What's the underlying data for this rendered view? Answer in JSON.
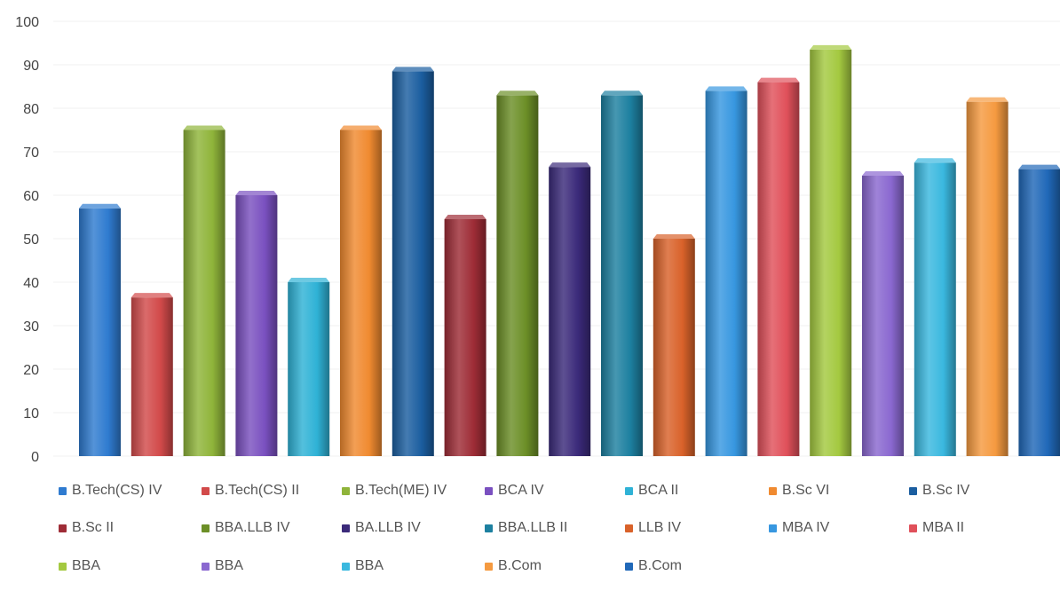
{
  "chart_data": {
    "type": "bar",
    "title": "",
    "xlabel": "",
    "ylabel": "",
    "ylim": [
      0,
      100
    ],
    "yticks": [
      0,
      10,
      20,
      30,
      40,
      50,
      60,
      70,
      80,
      90,
      100
    ],
    "grid": true,
    "legend_position": "bottom",
    "series": [
      {
        "name": "B.Tech(CS) IV",
        "value": 57,
        "color": "#2f7bd0"
      },
      {
        "name": "B.Tech(CS) II",
        "value": 36.5,
        "color": "#d24a4a"
      },
      {
        "name": "B.Tech(ME) IV",
        "value": 75,
        "color": "#8fb43a"
      },
      {
        "name": "BCA IV",
        "value": 60,
        "color": "#7a50c0"
      },
      {
        "name": "BCA II",
        "value": 40,
        "color": "#2fb2d6"
      },
      {
        "name": "B.Sc VI",
        "value": 75,
        "color": "#f08a30"
      },
      {
        "name": "B.Sc IV",
        "value": 88.5,
        "color": "#1b5ea0"
      },
      {
        "name": "B.Sc  II",
        "value": 54.5,
        "color": "#9e2c36"
      },
      {
        "name": "BBA.LLB IV",
        "value": 83,
        "color": "#6c8f27"
      },
      {
        "name": "BA.LLB IV",
        "value": 66.5,
        "color": "#3b2a7a"
      },
      {
        "name": "BBA.LLB II",
        "value": 83,
        "color": "#1d80a0"
      },
      {
        "name": "LLB IV",
        "value": 50,
        "color": "#d9622a"
      },
      {
        "name": "MBA IV",
        "value": 84,
        "color": "#3797e0"
      },
      {
        "name": "MBA II",
        "value": 86,
        "color": "#e0505a"
      },
      {
        "name": "BBA",
        "value": 93.5,
        "color": "#a4c940"
      },
      {
        "name": "BBA",
        "value": 64.5,
        "color": "#8a68d0"
      },
      {
        "name": "BBA",
        "value": 67.5,
        "color": "#3ab8df"
      },
      {
        "name": "B.Com",
        "value": 81.5,
        "color": "#f59a40"
      },
      {
        "name": "B.Com",
        "value": 66,
        "color": "#2068b8"
      }
    ]
  }
}
